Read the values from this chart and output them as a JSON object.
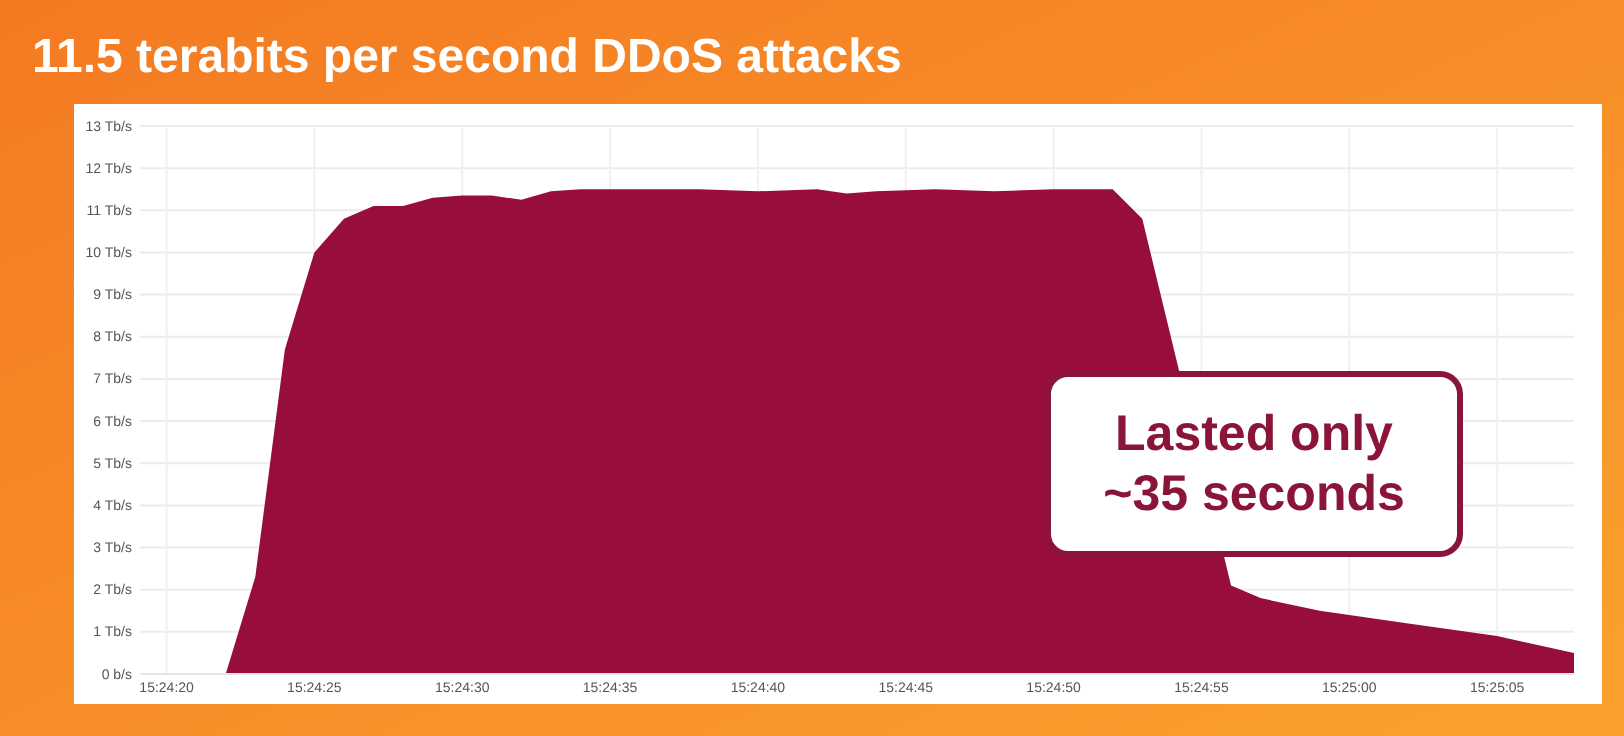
{
  "chart_data": {
    "type": "area",
    "title": "11.5 terabits per second DDoS attacks",
    "x": [
      15.405306,
      15.406111,
      15.406389,
      15.406667,
      15.406944,
      15.407222,
      15.4075,
      15.407778,
      15.408056,
      15.408333,
      15.408611,
      15.408889,
      15.409167,
      15.409444,
      15.41,
      15.410556,
      15.411111,
      15.411667,
      15.411944,
      15.412222,
      15.412778,
      15.413333,
      15.413889,
      15.414444,
      15.414722,
      15.415556,
      15.415833,
      15.416389,
      15.417222,
      15.418056,
      15.418778
    ],
    "series": [
      {
        "color": "#970e3e",
        "values": [
          0,
          0,
          2.3,
          7.7,
          10,
          10.8,
          11.1,
          11.1,
          11.3,
          11.35,
          11.35,
          11.25,
          11.45,
          11.5,
          11.5,
          11.5,
          11.45,
          11.5,
          11.4,
          11.45,
          11.5,
          11.45,
          11.5,
          11.5,
          10.8,
          2.1,
          1.8,
          1.5,
          1.2,
          0.9,
          0.5
        ]
      }
    ],
    "xlim": [
      15.405306,
      15.418778
    ],
    "xticks": [
      {
        "value": 15.405556,
        "label": "15:24:20"
      },
      {
        "value": 15.406944,
        "label": "15:24:25"
      },
      {
        "value": 15.408333,
        "label": "15:24:30"
      },
      {
        "value": 15.409722,
        "label": "15:24:35"
      },
      {
        "value": 15.411111,
        "label": "15:24:40"
      },
      {
        "value": 15.4125,
        "label": "15:24:45"
      },
      {
        "value": 15.413889,
        "label": "15:24:50"
      },
      {
        "value": 15.415278,
        "label": "15:24:55"
      },
      {
        "value": 15.416667,
        "label": "15:25:00"
      },
      {
        "value": 15.418056,
        "label": "15:25:05"
      }
    ],
    "ylim": [
      0,
      13
    ],
    "yticks": [
      {
        "value": 0,
        "label": "0 b/s"
      },
      {
        "value": 1,
        "label": "1 Tb/s"
      },
      {
        "value": 2,
        "label": "2 Tb/s"
      },
      {
        "value": 3,
        "label": "3 Tb/s"
      },
      {
        "value": 4,
        "label": "4 Tb/s"
      },
      {
        "value": 5,
        "label": "5 Tb/s"
      },
      {
        "value": 6,
        "label": "6 Tb/s"
      },
      {
        "value": 7,
        "label": "7 Tb/s"
      },
      {
        "value": 8,
        "label": "8 Tb/s"
      },
      {
        "value": 9,
        "label": "9 Tb/s"
      },
      {
        "value": 10,
        "label": "10 Tb/s"
      },
      {
        "value": 11,
        "label": "11 Tb/s"
      },
      {
        "value": 12,
        "label": "12 Tb/s"
      },
      {
        "value": 13,
        "label": "13 Tb/s"
      }
    ],
    "grid": true,
    "annotations": [
      "Lasted only\n~35 seconds"
    ]
  }
}
